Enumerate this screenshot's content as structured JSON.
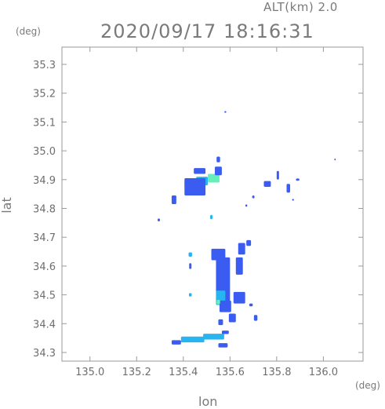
{
  "header": {
    "altitude_label": "ALT(km) 2.0",
    "datetime": "2020/09/17 18:16:31"
  },
  "chart_data": {
    "type": "heatmap",
    "title": "2020/09/17 18:16:31",
    "xlabel": "lon",
    "ylabel": "lat",
    "x_unit": "(deg)",
    "y_unit": "(deg)",
    "xlim": [
      134.88,
      136.17
    ],
    "ylim": [
      34.27,
      35.36
    ],
    "x_ticks": [
      "135.0",
      "135.2",
      "135.4",
      "135.6",
      "135.8",
      "136.0"
    ],
    "x_tick_values": [
      135.0,
      135.2,
      135.4,
      135.6,
      135.8,
      136.0
    ],
    "y_ticks": [
      "34.3",
      "34.4",
      "34.5",
      "34.6",
      "34.7",
      "34.8",
      "34.9",
      "35.0",
      "35.1",
      "35.2",
      "35.3"
    ],
    "y_tick_values": [
      34.3,
      34.4,
      34.5,
      34.6,
      34.7,
      34.8,
      34.9,
      35.0,
      35.1,
      35.2,
      35.3
    ],
    "grid": false,
    "colors": {
      "weak": "#3a5cf0",
      "moderate": "#28b4f0",
      "strong": "#66eebb",
      "axis": "#9a9a9a"
    },
    "cells": [
      {
        "lon": 135.43,
        "lat": 34.885,
        "w": 0.05,
        "h": 0.025,
        "level": "strong"
      },
      {
        "lon": 135.48,
        "lat": 34.895,
        "w": 0.05,
        "h": 0.03,
        "level": "moderate"
      },
      {
        "lon": 135.53,
        "lat": 34.905,
        "w": 0.05,
        "h": 0.03,
        "level": "strong"
      },
      {
        "lon": 135.45,
        "lat": 34.875,
        "w": 0.09,
        "h": 0.06,
        "level": "weak"
      },
      {
        "lon": 135.55,
        "lat": 34.93,
        "w": 0.03,
        "h": 0.03,
        "level": "weak"
      },
      {
        "lon": 135.55,
        "lat": 34.97,
        "w": 0.015,
        "h": 0.02,
        "level": "weak"
      },
      {
        "lon": 135.47,
        "lat": 34.93,
        "w": 0.05,
        "h": 0.02,
        "level": "weak"
      },
      {
        "lon": 135.36,
        "lat": 34.83,
        "w": 0.02,
        "h": 0.03,
        "level": "weak"
      },
      {
        "lon": 135.295,
        "lat": 34.76,
        "w": 0.01,
        "h": 0.01,
        "level": "weak"
      },
      {
        "lon": 135.58,
        "lat": 35.135,
        "w": 0.008,
        "h": 0.006,
        "level": "weak"
      },
      {
        "lon": 135.52,
        "lat": 34.77,
        "w": 0.01,
        "h": 0.015,
        "level": "moderate"
      },
      {
        "lon": 135.76,
        "lat": 34.885,
        "w": 0.03,
        "h": 0.02,
        "level": "weak"
      },
      {
        "lon": 135.805,
        "lat": 34.915,
        "w": 0.01,
        "h": 0.03,
        "level": "weak"
      },
      {
        "lon": 135.7,
        "lat": 34.84,
        "w": 0.01,
        "h": 0.01,
        "level": "weak"
      },
      {
        "lon": 135.67,
        "lat": 34.81,
        "w": 0.008,
        "h": 0.008,
        "level": "weak"
      },
      {
        "lon": 135.85,
        "lat": 34.87,
        "w": 0.015,
        "h": 0.03,
        "level": "weak"
      },
      {
        "lon": 135.89,
        "lat": 34.9,
        "w": 0.015,
        "h": 0.008,
        "level": "weak"
      },
      {
        "lon": 135.87,
        "lat": 34.83,
        "w": 0.008,
        "h": 0.006,
        "level": "weak"
      },
      {
        "lon": 136.05,
        "lat": 34.97,
        "w": 0.006,
        "h": 0.006,
        "level": "weak"
      },
      {
        "lon": 135.43,
        "lat": 34.64,
        "w": 0.015,
        "h": 0.015,
        "level": "moderate"
      },
      {
        "lon": 135.43,
        "lat": 34.6,
        "w": 0.01,
        "h": 0.02,
        "level": "weak"
      },
      {
        "lon": 135.43,
        "lat": 34.5,
        "w": 0.012,
        "h": 0.012,
        "level": "moderate"
      },
      {
        "lon": 135.57,
        "lat": 34.55,
        "w": 0.06,
        "h": 0.16,
        "level": "weak"
      },
      {
        "lon": 135.55,
        "lat": 34.64,
        "w": 0.06,
        "h": 0.04,
        "level": "weak"
      },
      {
        "lon": 135.56,
        "lat": 34.49,
        "w": 0.04,
        "h": 0.05,
        "level": "moderate"
      },
      {
        "lon": 135.58,
        "lat": 34.46,
        "w": 0.05,
        "h": 0.04,
        "level": "weak"
      },
      {
        "lon": 135.64,
        "lat": 34.6,
        "w": 0.03,
        "h": 0.06,
        "level": "weak"
      },
      {
        "lon": 135.65,
        "lat": 34.66,
        "w": 0.03,
        "h": 0.04,
        "level": "weak"
      },
      {
        "lon": 135.68,
        "lat": 34.68,
        "w": 0.02,
        "h": 0.02,
        "level": "weak"
      },
      {
        "lon": 135.64,
        "lat": 34.49,
        "w": 0.05,
        "h": 0.04,
        "level": "weak"
      },
      {
        "lon": 135.61,
        "lat": 34.42,
        "w": 0.03,
        "h": 0.03,
        "level": "weak"
      },
      {
        "lon": 135.56,
        "lat": 34.405,
        "w": 0.02,
        "h": 0.02,
        "level": "weak"
      },
      {
        "lon": 135.71,
        "lat": 34.42,
        "w": 0.015,
        "h": 0.02,
        "level": "weak"
      },
      {
        "lon": 135.69,
        "lat": 34.465,
        "w": 0.015,
        "h": 0.01,
        "level": "weak"
      },
      {
        "lon": 135.44,
        "lat": 34.345,
        "w": 0.1,
        "h": 0.02,
        "level": "moderate"
      },
      {
        "lon": 135.37,
        "lat": 34.335,
        "w": 0.04,
        "h": 0.015,
        "level": "weak"
      },
      {
        "lon": 135.53,
        "lat": 34.355,
        "w": 0.09,
        "h": 0.02,
        "level": "moderate"
      },
      {
        "lon": 135.57,
        "lat": 34.325,
        "w": 0.04,
        "h": 0.015,
        "level": "weak"
      },
      {
        "lon": 135.58,
        "lat": 34.37,
        "w": 0.03,
        "h": 0.012,
        "level": "weak"
      },
      {
        "lon": 135.55,
        "lat": 34.475,
        "w": 0.015,
        "h": 0.015,
        "level": "strong"
      }
    ]
  }
}
